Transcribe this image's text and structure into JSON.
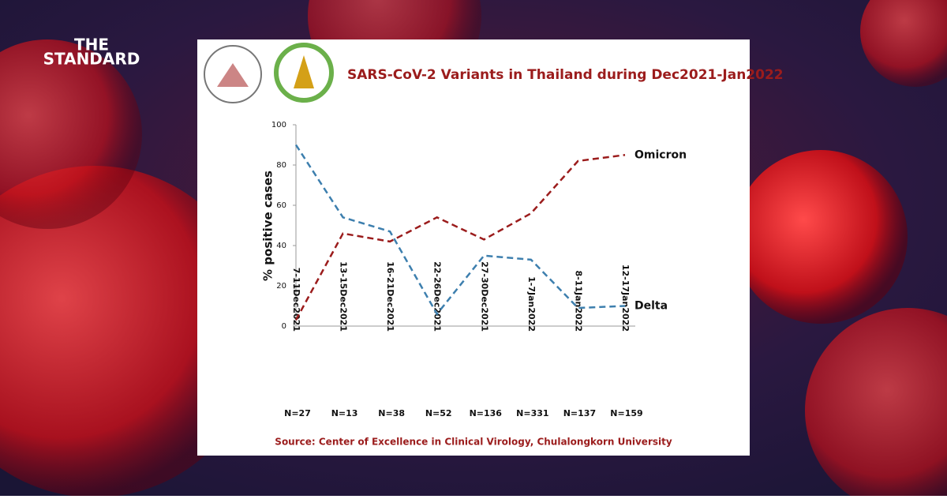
{
  "brand": {
    "line1": "THE",
    "line2": "STANDARD"
  },
  "chart_data": {
    "type": "line",
    "title": "SARS-CoV-2 Variants in Thailand during Dec2021-Jan2022",
    "y_label": "% positive cases",
    "categories": [
      "7-11Dec2021",
      "13-15Dec2021",
      "16-21Dec2021",
      "22-26Dec2021",
      "27-30Dec2021",
      "1-7Jan2022",
      "8-11Jan2022",
      "12-17Jan2022"
    ],
    "sample_labels": [
      "N=27",
      "N=13",
      "N=38",
      "N=52",
      "N=136",
      "N=331",
      "N=137",
      "N=159"
    ],
    "series": [
      {
        "name": "Omicron",
        "color": "#9b1c1c",
        "values": [
          3,
          46,
          42,
          54,
          43,
          56,
          82,
          85
        ]
      },
      {
        "name": "Delta",
        "color": "#3d7fae",
        "values": [
          90,
          54,
          47,
          6,
          35,
          33,
          9,
          10
        ]
      }
    ],
    "ylim": [
      0,
      100
    ],
    "yticks": [
      0,
      20,
      40,
      60,
      80,
      100
    ],
    "source": "Source: Center of Excellence in Clinical Virology, Chulalongkorn University"
  }
}
